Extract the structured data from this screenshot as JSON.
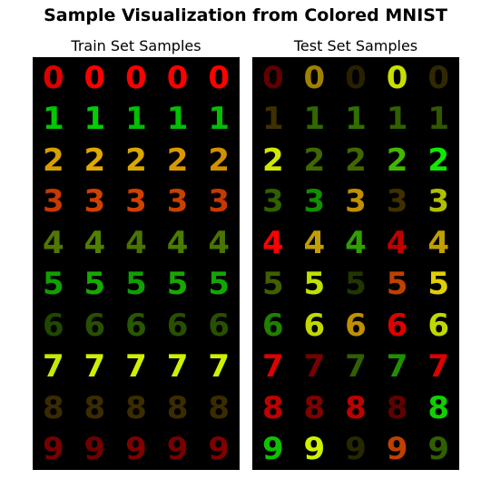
{
  "figure": {
    "title": "Sample Visualization from Colored MNIST"
  },
  "panels": [
    {
      "id": "train",
      "title": "Train Set Samples",
      "rows": [
        {
          "digit": "0",
          "colors": [
            "#e00000",
            "#ff0000",
            "#ff0000",
            "#ff0000",
            "#ff0000"
          ]
        },
        {
          "digit": "1",
          "colors": [
            "#00c800",
            "#00d000",
            "#00c000",
            "#00c000",
            "#00c000"
          ]
        },
        {
          "digit": "2",
          "colors": [
            "#d4a000",
            "#e0a800",
            "#d8a800",
            "#d89800",
            "#d09000"
          ]
        },
        {
          "digit": "3",
          "colors": [
            "#c83800",
            "#d04000",
            "#d04000",
            "#c84000",
            "#c83800"
          ]
        },
        {
          "digit": "4",
          "colors": [
            "#507800",
            "#508000",
            "#4a7400",
            "#4a7c00",
            "#4a7400"
          ]
        },
        {
          "digit": "5",
          "colors": [
            "#10a000",
            "#18a800",
            "#10a000",
            "#18a800",
            "#10a800"
          ]
        },
        {
          "digit": "6",
          "colors": [
            "#204800",
            "#285000",
            "#285800",
            "#285000",
            "#285000"
          ]
        },
        {
          "digit": "7",
          "colors": [
            "#c8e800",
            "#d0f000",
            "#d0f000",
            "#d0f000",
            "#d0f000"
          ]
        },
        {
          "digit": "8",
          "colors": [
            "#3a2a00",
            "#3a2c00",
            "#3a2c00",
            "#3a2c00",
            "#3a2c00"
          ]
        },
        {
          "digit": "9",
          "colors": [
            "#780000",
            "#700000",
            "#800000",
            "#780000",
            "#800000"
          ]
        }
      ]
    },
    {
      "id": "test",
      "title": "Test Set Samples",
      "rows": [
        {
          "digit": "0",
          "colors": [
            "#600000",
            "#a08000",
            "#282000",
            "#c8e000",
            "#302800"
          ]
        },
        {
          "digit": "1",
          "colors": [
            "#403000",
            "#306800",
            "#307000",
            "#306000",
            "#305800"
          ]
        },
        {
          "digit": "2",
          "colors": [
            "#d0e800",
            "#406800",
            "#406800",
            "#40b800",
            "#10e800"
          ]
        },
        {
          "digit": "3",
          "colors": [
            "#306000",
            "#109000",
            "#c09000",
            "#403000",
            "#b0c000"
          ]
        },
        {
          "digit": "4",
          "colors": [
            "#ff0000",
            "#c0a000",
            "#30a000",
            "#c00000",
            "#c0a000"
          ]
        },
        {
          "digit": "5",
          "colors": [
            "#406000",
            "#c0e000",
            "#203800",
            "#c04000",
            "#e0d000"
          ]
        },
        {
          "digit": "6",
          "colors": [
            "#208000",
            "#c0d800",
            "#c09000",
            "#e00000",
            "#c0d800"
          ]
        },
        {
          "digit": "7",
          "colors": [
            "#e00000",
            "#780000",
            "#306000",
            "#209000",
            "#e00000"
          ]
        },
        {
          "digit": "8",
          "colors": [
            "#c00000",
            "#800000",
            "#c00000",
            "#600000",
            "#10d000"
          ]
        },
        {
          "digit": "9",
          "colors": [
            "#10c000",
            "#d0f000",
            "#282800",
            "#c04000",
            "#306000"
          ]
        }
      ]
    }
  ]
}
